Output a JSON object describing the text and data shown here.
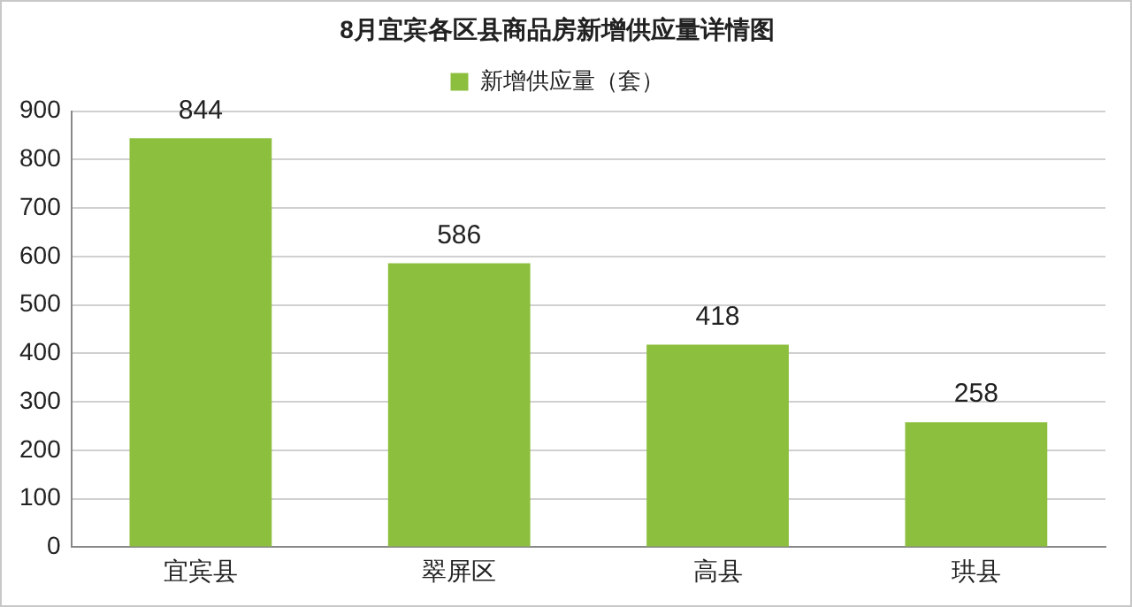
{
  "chart_data": {
    "type": "bar",
    "title": "8月宜宾各区县商品房新增供应量详情图",
    "categories": [
      "宜宾县",
      "翠屏区",
      "高县",
      "珙县"
    ],
    "series": [
      {
        "name": "新增供应量（套）",
        "color": "#8dbf3e",
        "values": [
          844,
          586,
          418,
          258
        ]
      }
    ],
    "ylim": [
      0,
      900
    ],
    "yticks": [
      0,
      100,
      200,
      300,
      400,
      500,
      600,
      700,
      800,
      900
    ],
    "grid": "y",
    "legend": "top",
    "data_labels": true
  }
}
